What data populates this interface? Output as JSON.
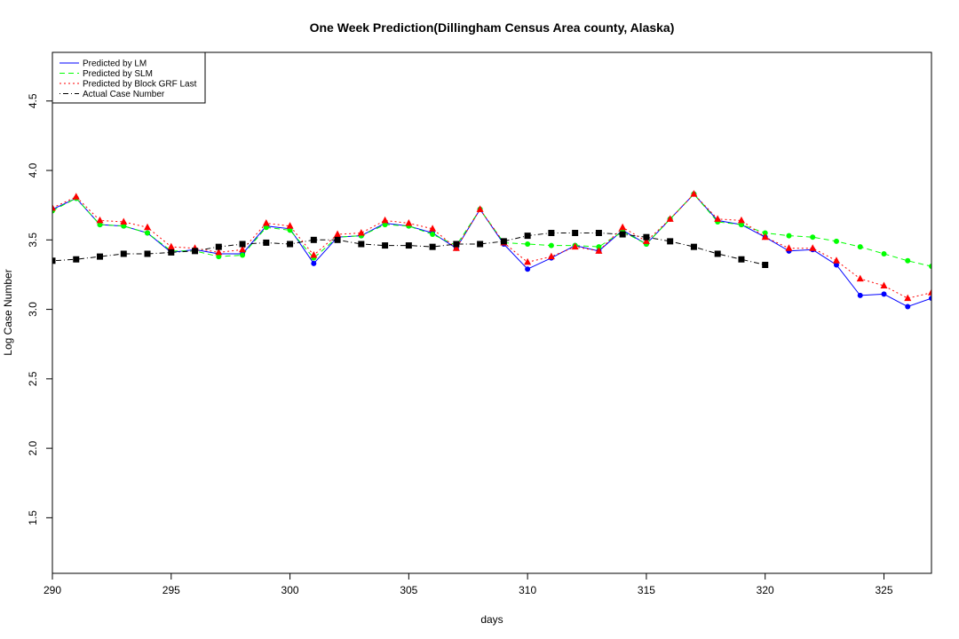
{
  "chart_data": {
    "type": "line",
    "title": "One Week Prediction(Dillingham Census Area county, Alaska)",
    "xlabel": "days",
    "ylabel": "Log Case Number",
    "xlim": [
      290,
      327
    ],
    "ylim": [
      1.1,
      4.85
    ],
    "x_ticks": [
      290,
      295,
      300,
      305,
      310,
      315,
      320,
      325
    ],
    "y_ticks": [
      1.5,
      2.0,
      2.5,
      3.0,
      3.5,
      4.0,
      4.5
    ],
    "x_tick_labels": [
      "290",
      "295",
      "300",
      "305",
      "310",
      "315",
      "320",
      "325"
    ],
    "y_tick_labels": [
      "1.5",
      "2.0",
      "2.5",
      "3.0",
      "3.5",
      "4.0",
      "4.5"
    ],
    "grid": false,
    "legend_position": "top-left",
    "x": [
      290,
      291,
      292,
      293,
      294,
      295,
      296,
      297,
      298,
      299,
      300,
      301,
      302,
      303,
      304,
      305,
      306,
      307,
      308,
      309,
      310,
      311,
      312,
      313,
      314,
      315,
      316,
      317,
      318,
      319,
      320,
      321,
      322,
      323,
      324,
      325,
      326,
      327
    ],
    "series": [
      {
        "name": "Predicted by LM",
        "color": "#0000ff",
        "line_style": "solid",
        "marker": "circle",
        "values": [
          3.72,
          3.8,
          3.61,
          3.6,
          3.55,
          3.41,
          3.43,
          3.4,
          3.4,
          3.6,
          3.58,
          3.33,
          3.52,
          3.53,
          3.62,
          3.6,
          3.55,
          3.44,
          3.72,
          3.47,
          3.29,
          3.37,
          3.46,
          3.42,
          3.57,
          3.47,
          3.65,
          3.83,
          3.64,
          3.61,
          3.52,
          3.42,
          3.43,
          3.32,
          3.1,
          3.11,
          3.02,
          3.08
        ]
      },
      {
        "name": "Predicted by SLM",
        "color": "#00ff00",
        "line_style": "dashed",
        "marker": "circle",
        "values": [
          3.71,
          3.8,
          3.61,
          3.6,
          3.55,
          3.42,
          3.42,
          3.38,
          3.39,
          3.59,
          3.57,
          3.37,
          3.52,
          3.53,
          3.61,
          3.6,
          3.54,
          3.46,
          3.72,
          3.48,
          3.47,
          3.46,
          3.46,
          3.45,
          3.56,
          3.47,
          3.65,
          3.83,
          3.63,
          3.61,
          3.55,
          3.53,
          3.52,
          3.49,
          3.45,
          3.4,
          3.35,
          3.31
        ]
      },
      {
        "name": "Predicted by Block GRF Last",
        "color": "#ff0000",
        "line_style": "dotted",
        "marker": "triangle",
        "values": [
          3.73,
          3.81,
          3.64,
          3.63,
          3.59,
          3.45,
          3.44,
          3.41,
          3.43,
          3.62,
          3.6,
          3.39,
          3.54,
          3.55,
          3.64,
          3.62,
          3.58,
          3.44,
          3.72,
          3.48,
          3.34,
          3.38,
          3.45,
          3.42,
          3.59,
          3.49,
          3.65,
          3.83,
          3.65,
          3.64,
          3.52,
          3.44,
          3.44,
          3.35,
          3.22,
          3.17,
          3.08,
          3.12
        ]
      },
      {
        "name": "Actual Case Number",
        "color": "#000000",
        "line_style": "dotdash",
        "marker": "square",
        "values": [
          3.35,
          3.36,
          3.38,
          3.4,
          3.4,
          3.41,
          3.42,
          3.45,
          3.47,
          3.48,
          3.47,
          3.5,
          3.5,
          3.47,
          3.46,
          3.46,
          3.45,
          3.47,
          3.47,
          3.49,
          3.53,
          3.55,
          3.55,
          3.55,
          3.54,
          3.52,
          3.49,
          3.45,
          3.4,
          3.36,
          3.32,
          null,
          null,
          null,
          null,
          null,
          null,
          null
        ]
      }
    ]
  }
}
